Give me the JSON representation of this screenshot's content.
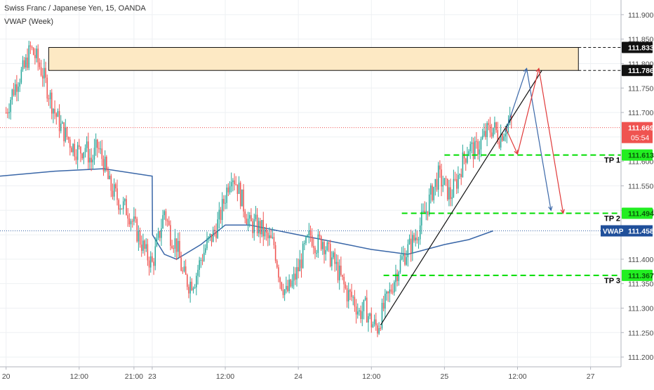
{
  "header": {
    "title": "Swiss Franc / Japanese Yen, 15, OANDA",
    "subtitle": "VWAP (Week)"
  },
  "chart_data": {
    "type": "candlestick",
    "title": "Swiss Franc / Japanese Yen, 15, OANDA",
    "ylim": [
      111.18,
      111.93
    ],
    "y_ticks": [
      111.9,
      111.85,
      111.8,
      111.75,
      111.7,
      111.65,
      111.6,
      111.55,
      111.5,
      111.45,
      111.4,
      111.35,
      111.3,
      111.25,
      111.2
    ],
    "y_tick_labels": [
      "111.900",
      "111.850",
      "111.800",
      "111.750",
      "111.700",
      "",
      "111.600",
      "111.550",
      "111.500",
      "",
      "111.400",
      "111.350",
      "111.300",
      "111.250",
      "111.200"
    ],
    "x_tick_labels": [
      "20",
      "12:00",
      "21:00",
      "23",
      "12:00",
      "24",
      "12:00",
      "25",
      "12:00",
      "27"
    ],
    "x_tick_hours": [
      0,
      12,
      21,
      24,
      36,
      48,
      60,
      72,
      84,
      96
    ],
    "x_range_hours": [
      -1,
      101
    ],
    "grid": true,
    "colors": {
      "up": "#26a69a",
      "down": "#ef5350",
      "vwap": "#3a67a8",
      "zone_fill": "#fde9c4",
      "tp": "#00dd00",
      "price_line": "#ef5350",
      "arrow_blue": "#3a67a8",
      "arrow_red": "#e03a3a"
    },
    "close_series": [
      [
        0,
        111.7
      ],
      [
        1,
        111.74
      ],
      [
        2,
        111.77
      ],
      [
        3,
        111.79
      ],
      [
        4,
        111.83
      ],
      [
        5,
        111.81
      ],
      [
        6,
        111.78
      ],
      [
        7,
        111.74
      ],
      [
        8,
        111.7
      ],
      [
        9,
        111.67
      ],
      [
        10,
        111.65
      ],
      [
        11,
        111.63
      ],
      [
        12,
        111.62
      ],
      [
        13,
        111.63
      ],
      [
        14,
        111.6
      ],
      [
        15,
        111.63
      ],
      [
        16,
        111.6
      ],
      [
        17,
        111.55
      ],
      [
        18,
        111.53
      ],
      [
        19,
        111.51
      ],
      [
        20,
        111.5
      ],
      [
        21,
        111.47
      ],
      [
        22,
        111.44
      ],
      [
        23,
        111.41
      ],
      [
        24,
        111.39
      ],
      [
        25,
        111.44
      ],
      [
        26,
        111.5
      ],
      [
        27,
        111.45
      ],
      [
        28,
        111.43
      ],
      [
        29,
        111.37
      ],
      [
        30,
        111.35
      ],
      [
        31,
        111.36
      ],
      [
        32,
        111.4
      ],
      [
        33,
        111.43
      ],
      [
        34,
        111.45
      ],
      [
        35,
        111.48
      ],
      [
        36,
        111.53
      ],
      [
        37,
        111.58
      ],
      [
        38,
        111.55
      ],
      [
        39,
        111.51
      ],
      [
        40,
        111.47
      ],
      [
        41,
        111.47
      ],
      [
        42,
        111.46
      ],
      [
        43,
        111.44
      ],
      [
        44,
        111.43
      ],
      [
        45,
        111.36
      ],
      [
        46,
        111.33
      ],
      [
        47,
        111.35
      ],
      [
        48,
        111.38
      ],
      [
        49,
        111.42
      ],
      [
        50,
        111.45
      ],
      [
        51,
        111.43
      ],
      [
        52,
        111.44
      ],
      [
        53,
        111.41
      ],
      [
        54,
        111.39
      ],
      [
        55,
        111.36
      ],
      [
        56,
        111.33
      ],
      [
        57,
        111.32
      ],
      [
        58,
        111.29
      ],
      [
        59,
        111.3
      ],
      [
        60,
        111.27
      ],
      [
        61,
        111.26
      ],
      [
        62,
        111.3
      ],
      [
        63,
        111.33
      ],
      [
        64,
        111.37
      ],
      [
        65,
        111.4
      ],
      [
        66,
        111.42
      ],
      [
        67,
        111.44
      ],
      [
        68,
        111.47
      ],
      [
        69,
        111.5
      ],
      [
        70,
        111.54
      ],
      [
        71,
        111.57
      ],
      [
        72,
        111.55
      ],
      [
        73,
        111.53
      ],
      [
        74,
        111.56
      ],
      [
        75,
        111.6
      ],
      [
        76,
        111.63
      ],
      [
        77,
        111.62
      ],
      [
        78,
        111.64
      ],
      [
        79,
        111.66
      ],
      [
        80,
        111.67
      ],
      [
        81,
        111.65
      ],
      [
        82,
        111.67
      ],
      [
        83,
        111.68
      ]
    ],
    "vwap_series": [
      [
        -1,
        111.57
      ],
      [
        8,
        111.58
      ],
      [
        16,
        111.585
      ],
      [
        24,
        111.57
      ],
      [
        24.05,
        111.45
      ],
      [
        26,
        111.41
      ],
      [
        28,
        111.4
      ],
      [
        32,
        111.43
      ],
      [
        36,
        111.47
      ],
      [
        40,
        111.47
      ],
      [
        48,
        111.45
      ],
      [
        56,
        111.43
      ],
      [
        60,
        111.42
      ],
      [
        66,
        111.41
      ],
      [
        72,
        111.43
      ],
      [
        76,
        111.44
      ],
      [
        80,
        111.458
      ]
    ],
    "supply_zone": {
      "low": 111.786,
      "high": 111.833
    },
    "levels": [
      {
        "label": "111.833",
        "value": 111.833
      },
      {
        "label": "111.786",
        "value": 111.786
      }
    ],
    "current_price": {
      "label": "111.669",
      "value": 111.669,
      "countdown": "05:54"
    },
    "vwap_level": {
      "label": "VWAP",
      "value_label": "111.458",
      "value": 111.458
    },
    "take_profits": [
      {
        "name": "TP 1",
        "value": 111.613,
        "price_label": "111.613",
        "from_hour": 72
      },
      {
        "name": "TP 2",
        "value": 111.494,
        "price_label": "111.494",
        "from_hour": 65
      },
      {
        "name": "TP 3",
        "value": 111.367,
        "price_label": "111.367",
        "from_hour": 62
      }
    ],
    "trendline": {
      "from": [
        61.5,
        111.265
      ],
      "to": [
        88,
        111.786
      ]
    },
    "arrow_paths": [
      {
        "color": "blue",
        "points": [
          [
            82,
            111.66
          ],
          [
            85.5,
            111.79
          ],
          [
            89.5,
            111.5
          ]
        ]
      },
      {
        "color": "red",
        "points": [
          [
            82,
            111.67
          ],
          [
            84,
            111.615
          ],
          [
            87.5,
            111.79
          ],
          [
            91.5,
            111.494
          ]
        ]
      }
    ]
  }
}
